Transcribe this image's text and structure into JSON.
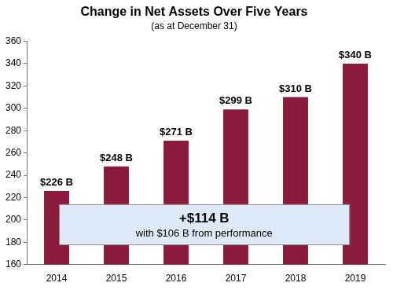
{
  "chart_data": {
    "type": "bar",
    "title": "Change in Net Assets Over Five Years",
    "subtitle": "(as at December 31)",
    "categories": [
      "2014",
      "2015",
      "2016",
      "2017",
      "2018",
      "2019"
    ],
    "values": [
      226,
      248,
      271,
      299,
      310,
      340
    ],
    "value_labels": [
      "$226 B",
      "$248 B",
      "$271 B",
      "$299 B",
      "$310 B",
      "$340 B"
    ],
    "color": "#8b1a3c",
    "ylim": [
      160,
      360
    ],
    "yticks": [
      160,
      180,
      200,
      220,
      240,
      260,
      280,
      300,
      320,
      340,
      360
    ],
    "grid": false,
    "data_labels": true,
    "annotation": {
      "title": "+$114 B",
      "text": "with $106 B from performance"
    }
  }
}
